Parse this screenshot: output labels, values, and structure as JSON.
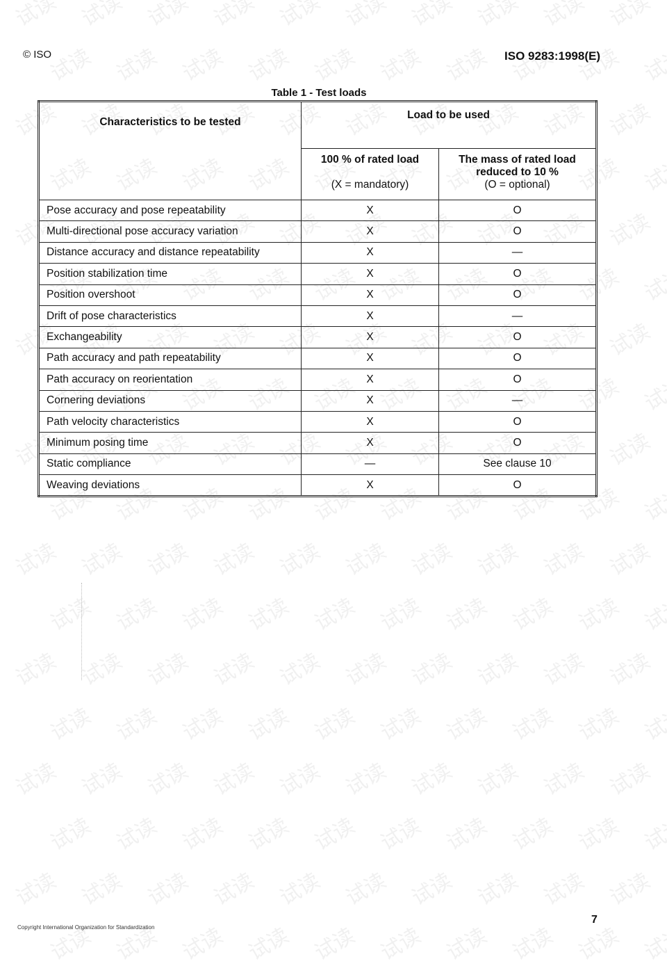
{
  "header": {
    "left": "© ISO",
    "right": "ISO 9283:1998(E)"
  },
  "table": {
    "title": "Table 1 - Test loads",
    "col_characteristics": "Characteristics  to be tested",
    "col_load_group": "Load to be used",
    "col_full": "100 % of rated load",
    "col_full_note": "(X = mandatory)",
    "col_reduced": "The mass of rated load reduced to 10 %",
    "col_reduced_note": "(O = optional)",
    "rows": [
      {
        "characteristic": "Pose accuracy and  pose repeatability",
        "full": "X",
        "reduced": "O"
      },
      {
        "characteristic": "Multi-directional pose accuracy variation",
        "full": "X",
        "reduced": "O"
      },
      {
        "characteristic": "Distance accuracy and distance repeatability",
        "full": "X",
        "reduced": "—"
      },
      {
        "characteristic": "Position stabilization time",
        "full": "X",
        "reduced": "O"
      },
      {
        "characteristic": "Position overshoot",
        "full": "X",
        "reduced": "O"
      },
      {
        "characteristic": "Drift of pose characteristics",
        "full": "X",
        "reduced": "—"
      },
      {
        "characteristic": "Exchangeability",
        "full": "X",
        "reduced": "O"
      },
      {
        "characteristic": "Path accuracy and path repeatability",
        "full": "X",
        "reduced": "O"
      },
      {
        "characteristic": "Path accuracy on reorientation",
        "full": "X",
        "reduced": "O"
      },
      {
        "characteristic": "Cornering deviations",
        "full": "X",
        "reduced": "—"
      },
      {
        "characteristic": "Path velocity characteristics",
        "full": "X",
        "reduced": "O"
      },
      {
        "characteristic": "Minimum posing time",
        "full": "X",
        "reduced": "O"
      },
      {
        "characteristic": "Static compliance",
        "full": "—",
        "reduced": "See clause 10"
      },
      {
        "characteristic": "Weaving deviations",
        "full": "X",
        "reduced": "O"
      }
    ]
  },
  "footer": {
    "copyright": "Copyright International Organization for Standardization",
    "page_number": "7"
  },
  "watermark": "试读"
}
